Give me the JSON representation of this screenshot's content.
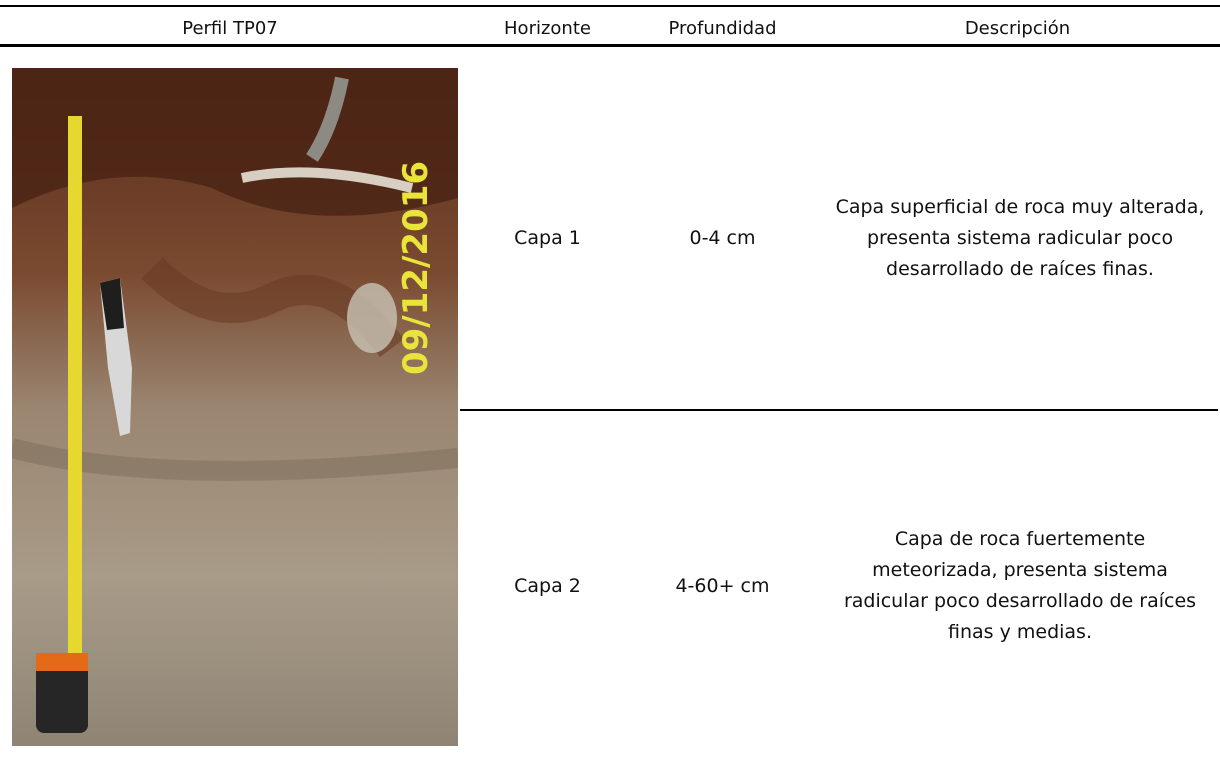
{
  "header": {
    "columns": [
      "Perfil TP07",
      "Horizonte",
      "Profundidad",
      "Descripción"
    ]
  },
  "photo": {
    "date_stamp": "09/12/2016"
  },
  "table": {
    "rows": [
      [
        "Capa 1",
        "0-4 cm",
        "Capa superficial de roca muy alterada, presenta sistema radicular poco desarrollado de raíces finas."
      ],
      [
        "Capa 2",
        "4-60+ cm",
        "Capa de roca fuertemente meteorizada, presenta sistema radicular poco desarrollado de raíces finas y medias."
      ]
    ]
  }
}
